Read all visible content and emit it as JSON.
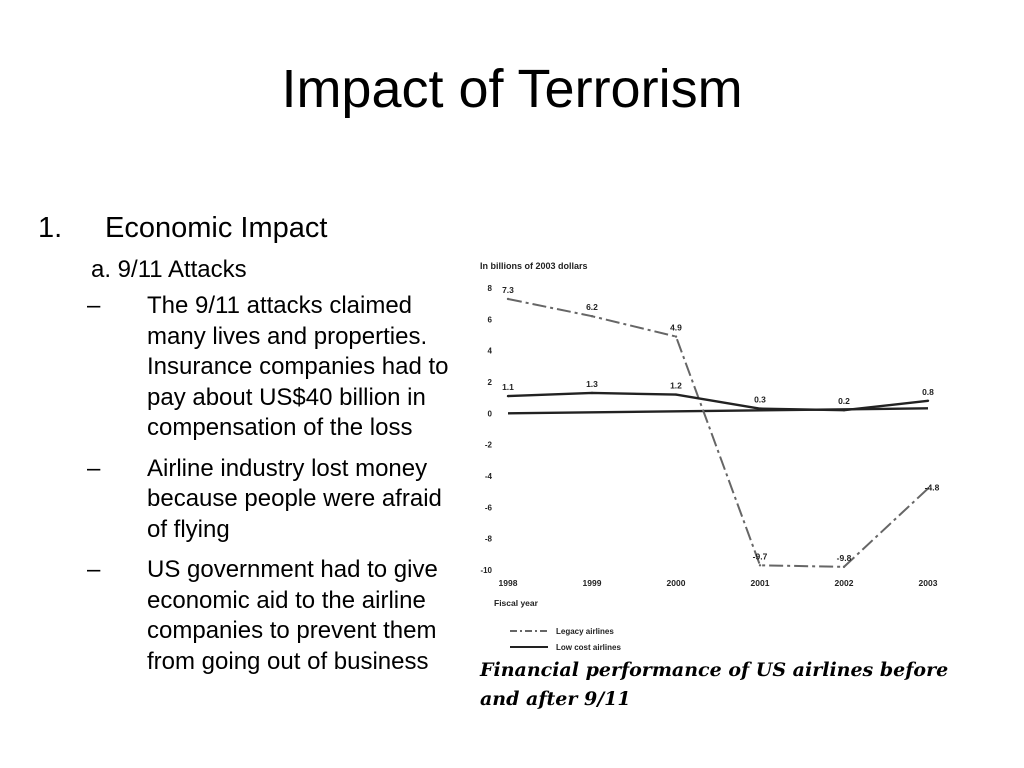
{
  "slide": {
    "title": "Impact of Terrorism",
    "item_number": "1.",
    "item_text": "Economic Impact",
    "subitem": "a. 9/11 Attacks",
    "bullets": [
      "The 9/11 attacks claimed many lives and properties. Insurance companies had to pay about US$40 billion in compensation of the loss",
      "Airline industry lost money because people were afraid of flying",
      "US government had to give economic aid to the airline companies to prevent them from going out of business"
    ],
    "bullet_marker": "–",
    "caption": "Financial performance of US airlines before and after 9/11"
  },
  "chart_data": {
    "type": "line",
    "ylabel": "In billions of 2003 dollars",
    "xlabel": "Fiscal year",
    "categories": [
      "1998",
      "1999",
      "2000",
      "2001",
      "2002",
      "2003"
    ],
    "ylim": [
      -10,
      8
    ],
    "yticks": [
      8,
      6,
      4,
      2,
      0,
      -2,
      -4,
      -6,
      -8,
      -10
    ],
    "series": [
      {
        "name": "Legacy airlines",
        "values": [
          7.3,
          6.2,
          4.9,
          -9.7,
          -9.8,
          -4.8
        ],
        "labels": [
          "7.3",
          "6.2",
          "4.9",
          "-9.7",
          "-9.8",
          "-4.8"
        ],
        "style": "dash-dot",
        "color": "#666666"
      },
      {
        "name": "Low cost airlines",
        "values": [
          1.1,
          1.3,
          1.2,
          0.3,
          0.2,
          0.8
        ],
        "labels": [
          "1.1",
          "1.3",
          "1.2",
          "0.3",
          "0.2",
          "0.8"
        ],
        "style": "solid",
        "color": "#222222"
      }
    ],
    "zero_line": true,
    "legend_position": "bottom-left",
    "grid": false
  }
}
